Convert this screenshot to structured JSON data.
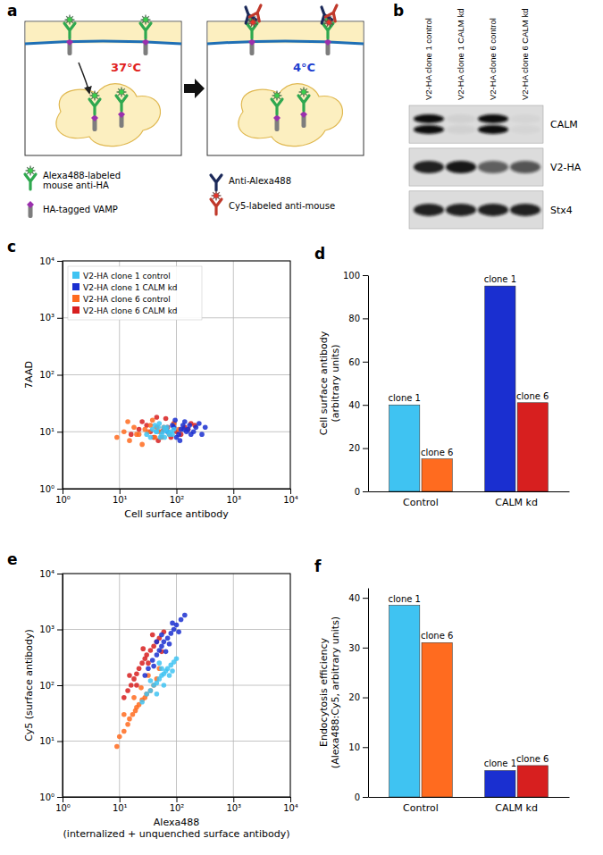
{
  "diagram": {
    "panel_label": "a",
    "left_temperature": "37°C",
    "right_temperature": "4°C",
    "symbols": [
      "Alexa488-labeled\nmouse anti-HA",
      "HA-tagged VAMP",
      "Anti-Alexa488",
      "Cy5-labeled anti-mouse"
    ]
  },
  "blot": {
    "panel_label": "b",
    "lanes": [
      "V2-HA clone 1 control",
      "V2-HA clone 1 CALM kd",
      "V2-HA clone 6 control",
      "V2-HA clone 6 CALM kd"
    ],
    "rows": [
      {
        "label": "CALM",
        "intensity": [
          1,
          0.05,
          1,
          0.03
        ]
      },
      {
        "label": "V2-HA",
        "intensity": [
          0.9,
          0.95,
          0.6,
          0.65
        ]
      },
      {
        "label": "Stx4",
        "intensity": [
          0.9,
          0.9,
          0.9,
          0.9
        ]
      }
    ]
  },
  "chart_data": [
    {
      "panel_label": "c",
      "type": "scatter",
      "x_label": "Cell surface antibody",
      "y_label": "7AAD",
      "log": true,
      "grid": true,
      "legend": "upper left",
      "xlim": [
        1,
        10000
      ],
      "ylim": [
        1,
        10000
      ],
      "xticks": [
        {
          "value": 1,
          "label": "10⁰"
        },
        {
          "value": 10,
          "label": "10¹"
        },
        {
          "value": 100,
          "label": "10²"
        },
        {
          "value": 1000,
          "label": "10³"
        },
        {
          "value": 10000,
          "label": "10⁴"
        }
      ],
      "yticks": [
        {
          "value": 1,
          "label": "10⁰"
        },
        {
          "value": 10,
          "label": "10¹"
        },
        {
          "value": 100,
          "label": "10²"
        },
        {
          "value": 1000,
          "label": "10³"
        },
        {
          "value": 10000,
          "label": "10⁴"
        }
      ],
      "series": [
        {
          "name": "V2-HA clone 1 control",
          "color": "#3fc3f2",
          "x": [
            30,
            38,
            45,
            52,
            60,
            70,
            42,
            55,
            65,
            80,
            35,
            48,
            58,
            75,
            90,
            50,
            62,
            44,
            68,
            85
          ],
          "values": [
            9,
            11,
            10,
            8,
            12,
            10,
            13,
            9,
            11,
            10,
            8,
            12,
            10,
            9,
            11,
            14,
            8,
            10,
            12,
            9
          ]
        },
        {
          "name": "V2-HA clone 1 CALM kd",
          "color": "#1a2fd0",
          "x": [
            70,
            90,
            110,
            130,
            160,
            200,
            250,
            320,
            100,
            140,
            180,
            120,
            85,
            150,
            220,
            280,
            95,
            170,
            115,
            135
          ],
          "values": [
            10,
            12,
            9,
            13,
            11,
            10,
            14,
            12,
            8,
            15,
            9,
            11,
            13,
            10,
            12,
            9,
            16,
            13,
            7,
            11
          ]
        },
        {
          "name": "V2-HA clone 6 control",
          "color": "#ff6b1f",
          "x": [
            9,
            12,
            15,
            18,
            22,
            28,
            35,
            42,
            50,
            60,
            75,
            90,
            110,
            14,
            25,
            32,
            45,
            20,
            55,
            38
          ],
          "values": [
            8,
            10,
            7,
            12,
            9,
            11,
            13,
            8,
            10,
            12,
            9,
            14,
            11,
            15,
            6,
            10,
            12,
            9,
            8,
            16
          ]
        },
        {
          "name": "V2-HA clone 6 CALM kd",
          "color": "#d71f1f",
          "x": [
            16,
            22,
            30,
            40,
            55,
            70,
            90,
            120,
            160,
            210,
            25,
            48,
            65,
            100,
            140,
            35,
            80,
            180,
            60,
            45
          ],
          "values": [
            9,
            11,
            13,
            8,
            10,
            12,
            14,
            9,
            11,
            13,
            15,
            7,
            17,
            10,
            12,
            10,
            8,
            14,
            11,
            18
          ]
        }
      ]
    },
    {
      "panel_label": "d",
      "type": "bar",
      "y_label": "Cell surface antibody\n(arbitrary units)",
      "categories": [
        "Control",
        "CALM kd"
      ],
      "ylim": [
        0,
        100
      ],
      "yticks": [
        0,
        20,
        40,
        60,
        80,
        100
      ],
      "series": [
        {
          "name": "clone 1",
          "colors": [
            "#3fc3f2",
            "#1a2fd0"
          ],
          "values": [
            40,
            95
          ]
        },
        {
          "name": "clone 6",
          "colors": [
            "#ff6b1f",
            "#d71f1f"
          ],
          "values": [
            15,
            41
          ]
        }
      ]
    },
    {
      "panel_label": "e",
      "type": "scatter",
      "x_label": "Alexa488\n(internalized + unquenched surface antibody)",
      "y_label": "Cy5 (surface antibody)",
      "log": true,
      "grid": true,
      "xlim": [
        1,
        10000
      ],
      "ylim": [
        1,
        10000
      ],
      "xticks": [
        {
          "value": 1,
          "label": "10⁰"
        },
        {
          "value": 10,
          "label": "10¹"
        },
        {
          "value": 100,
          "label": "10²"
        },
        {
          "value": 1000,
          "label": "10³"
        },
        {
          "value": 10000,
          "label": "10⁴"
        }
      ],
      "yticks": [
        {
          "value": 1,
          "label": "10⁰"
        },
        {
          "value": 10,
          "label": "10¹"
        },
        {
          "value": 100,
          "label": "10²"
        },
        {
          "value": 1000,
          "label": "10³"
        },
        {
          "value": 10000,
          "label": "10⁴"
        }
      ],
      "series": [
        {
          "color": "#3fc3f2",
          "x": [
            25,
            30,
            35,
            40,
            45,
            50,
            55,
            60,
            65,
            70,
            80,
            90,
            100,
            45,
            55,
            75,
            35,
            60,
            85,
            50
          ],
          "values": [
            50,
            70,
            80,
            100,
            110,
            130,
            150,
            160,
            180,
            200,
            230,
            260,
            300,
            70,
            200,
            150,
            120,
            100,
            180,
            250
          ]
        },
        {
          "color": "#1a2fd0",
          "x": [
            28,
            32,
            38,
            45,
            50,
            55,
            60,
            70,
            80,
            90,
            100,
            120,
            140,
            45,
            65,
            85,
            40,
            55,
            75,
            110
          ],
          "values": [
            150,
            200,
            280,
            350,
            420,
            500,
            600,
            700,
            850,
            1000,
            1200,
            1500,
            1800,
            600,
            400,
            1300,
            220,
            800,
            550,
            900
          ]
        },
        {
          "color": "#ff6b1f",
          "x": [
            9,
            10,
            12,
            14,
            15,
            17,
            19,
            20,
            22,
            25,
            28,
            30,
            35,
            40,
            45,
            12,
            18,
            24,
            32,
            50
          ],
          "values": [
            8,
            12,
            15,
            20,
            25,
            30,
            35,
            40,
            45,
            55,
            60,
            70,
            80,
            100,
            130,
            30,
            60,
            90,
            150,
            200
          ]
        },
        {
          "color": "#d71f1f",
          "x": [
            12,
            14,
            16,
            18,
            20,
            22,
            25,
            28,
            30,
            35,
            40,
            45,
            50,
            60,
            15,
            20,
            26,
            32,
            38,
            55
          ],
          "values": [
            60,
            80,
            100,
            130,
            160,
            200,
            250,
            300,
            350,
            420,
            500,
            600,
            700,
            900,
            150,
            100,
            450,
            250,
            800,
            400
          ]
        }
      ]
    },
    {
      "panel_label": "f",
      "type": "bar",
      "y_label": "Endocytosis efficiency\n(Alexa488:Cy5, arbitrary units)",
      "categories": [
        "Control",
        "CALM kd"
      ],
      "ylim": [
        0,
        42
      ],
      "yticks": [
        0,
        10,
        20,
        30,
        40
      ],
      "series": [
        {
          "name": "clone 1",
          "colors": [
            "#3fc3f2",
            "#1a2fd0"
          ],
          "values": [
            38.5,
            5.3
          ]
        },
        {
          "name": "clone 6",
          "colors": [
            "#ff6b1f",
            "#d71f1f"
          ],
          "values": [
            31,
            6.3
          ]
        }
      ]
    }
  ]
}
